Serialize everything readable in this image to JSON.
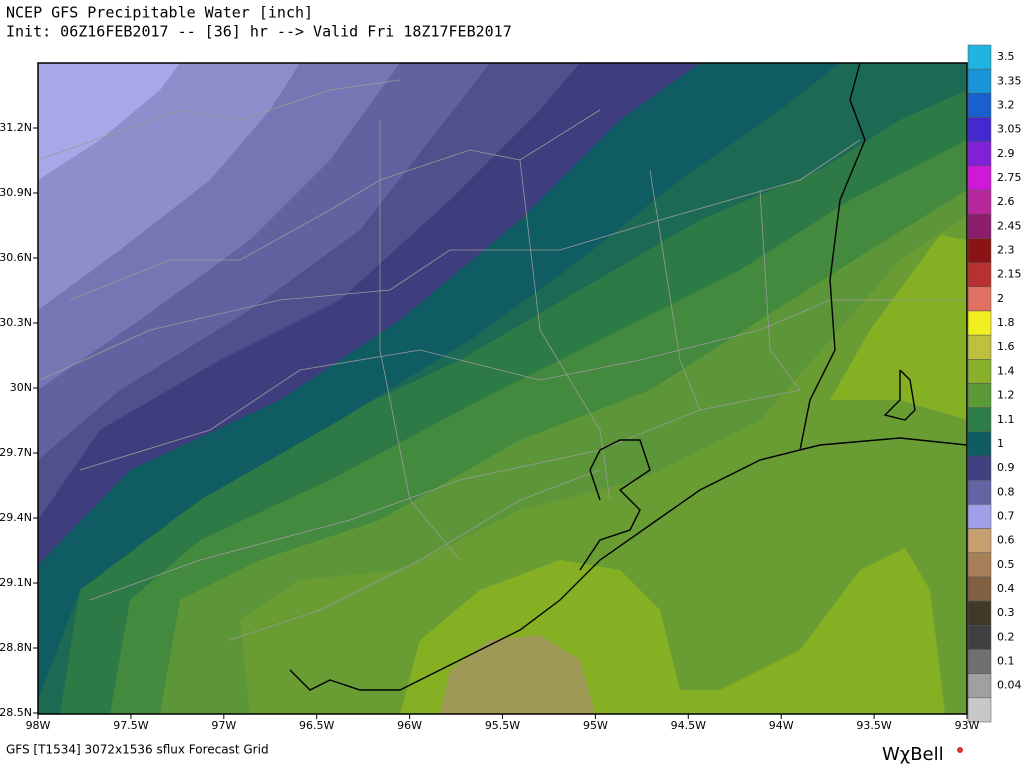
{
  "header": {
    "title": "NCEP GFS Precipitable Water [inch]",
    "subtitle": "Init: 06Z16FEB2017 -- [36] hr --> Valid Fri 18Z17FEB2017"
  },
  "map": {
    "xlim": [
      -98,
      -93
    ],
    "ylim": [
      28.5,
      31.5
    ],
    "xticks": [
      {
        "value": -98,
        "label": "98W"
      },
      {
        "value": -97.5,
        "label": "97.5W"
      },
      {
        "value": -97,
        "label": "97W"
      },
      {
        "value": -96.5,
        "label": "96.5W"
      },
      {
        "value": -96,
        "label": "96W"
      },
      {
        "value": -95.5,
        "label": "95.5W"
      },
      {
        "value": -95,
        "label": "95W"
      },
      {
        "value": -94.5,
        "label": "94.5W"
      },
      {
        "value": -94,
        "label": "94W"
      },
      {
        "value": -93.5,
        "label": "93.5W"
      },
      {
        "value": -93,
        "label": "93W"
      }
    ],
    "yticks": [
      {
        "value": 31.2,
        "label": "31.2N"
      },
      {
        "value": 30.9,
        "label": "30.9N"
      },
      {
        "value": 30.6,
        "label": "30.6N"
      },
      {
        "value": 30.3,
        "label": "30.3N"
      },
      {
        "value": 30,
        "label": "30N"
      },
      {
        "value": 29.7,
        "label": "29.7N"
      },
      {
        "value": 29.4,
        "label": "29.4N"
      },
      {
        "value": 29.1,
        "label": "29.1N"
      },
      {
        "value": 28.8,
        "label": "28.8N"
      },
      {
        "value": 28.5,
        "label": "28.5N"
      }
    ]
  },
  "colorbar": {
    "levels": [
      3.5,
      3.35,
      3.2,
      3.05,
      2.9,
      2.75,
      2.6,
      2.45,
      2.3,
      2.15,
      2,
      1.8,
      1.6,
      1.4,
      1.2,
      1.1,
      1,
      0.9,
      0.8,
      0.7,
      0.6,
      0.5,
      0.4,
      0.3,
      0.2,
      0.1,
      0.04
    ],
    "colors": [
      "#20b4e0",
      "#1a94d8",
      "#1860d0",
      "#4428d0",
      "#8020d8",
      "#d018d8",
      "#b8289c",
      "#8c1c6c",
      "#8a1414",
      "#b83030",
      "#e07060",
      "#f0f020",
      "#c0c040",
      "#88b02c",
      "#5a9a38",
      "#2e7c46",
      "#0e5c62",
      "#404080",
      "#6464a4",
      "#a0a0e8",
      "#c8a070",
      "#a88058",
      "#806040",
      "#403828",
      "#404040",
      "#707070",
      "#a0a0a0",
      "#c8c8c8"
    ]
  },
  "footer": {
    "source": "GFS [T1534] 3072x1536 sflux Forecast Grid",
    "brand": "WχBell"
  }
}
